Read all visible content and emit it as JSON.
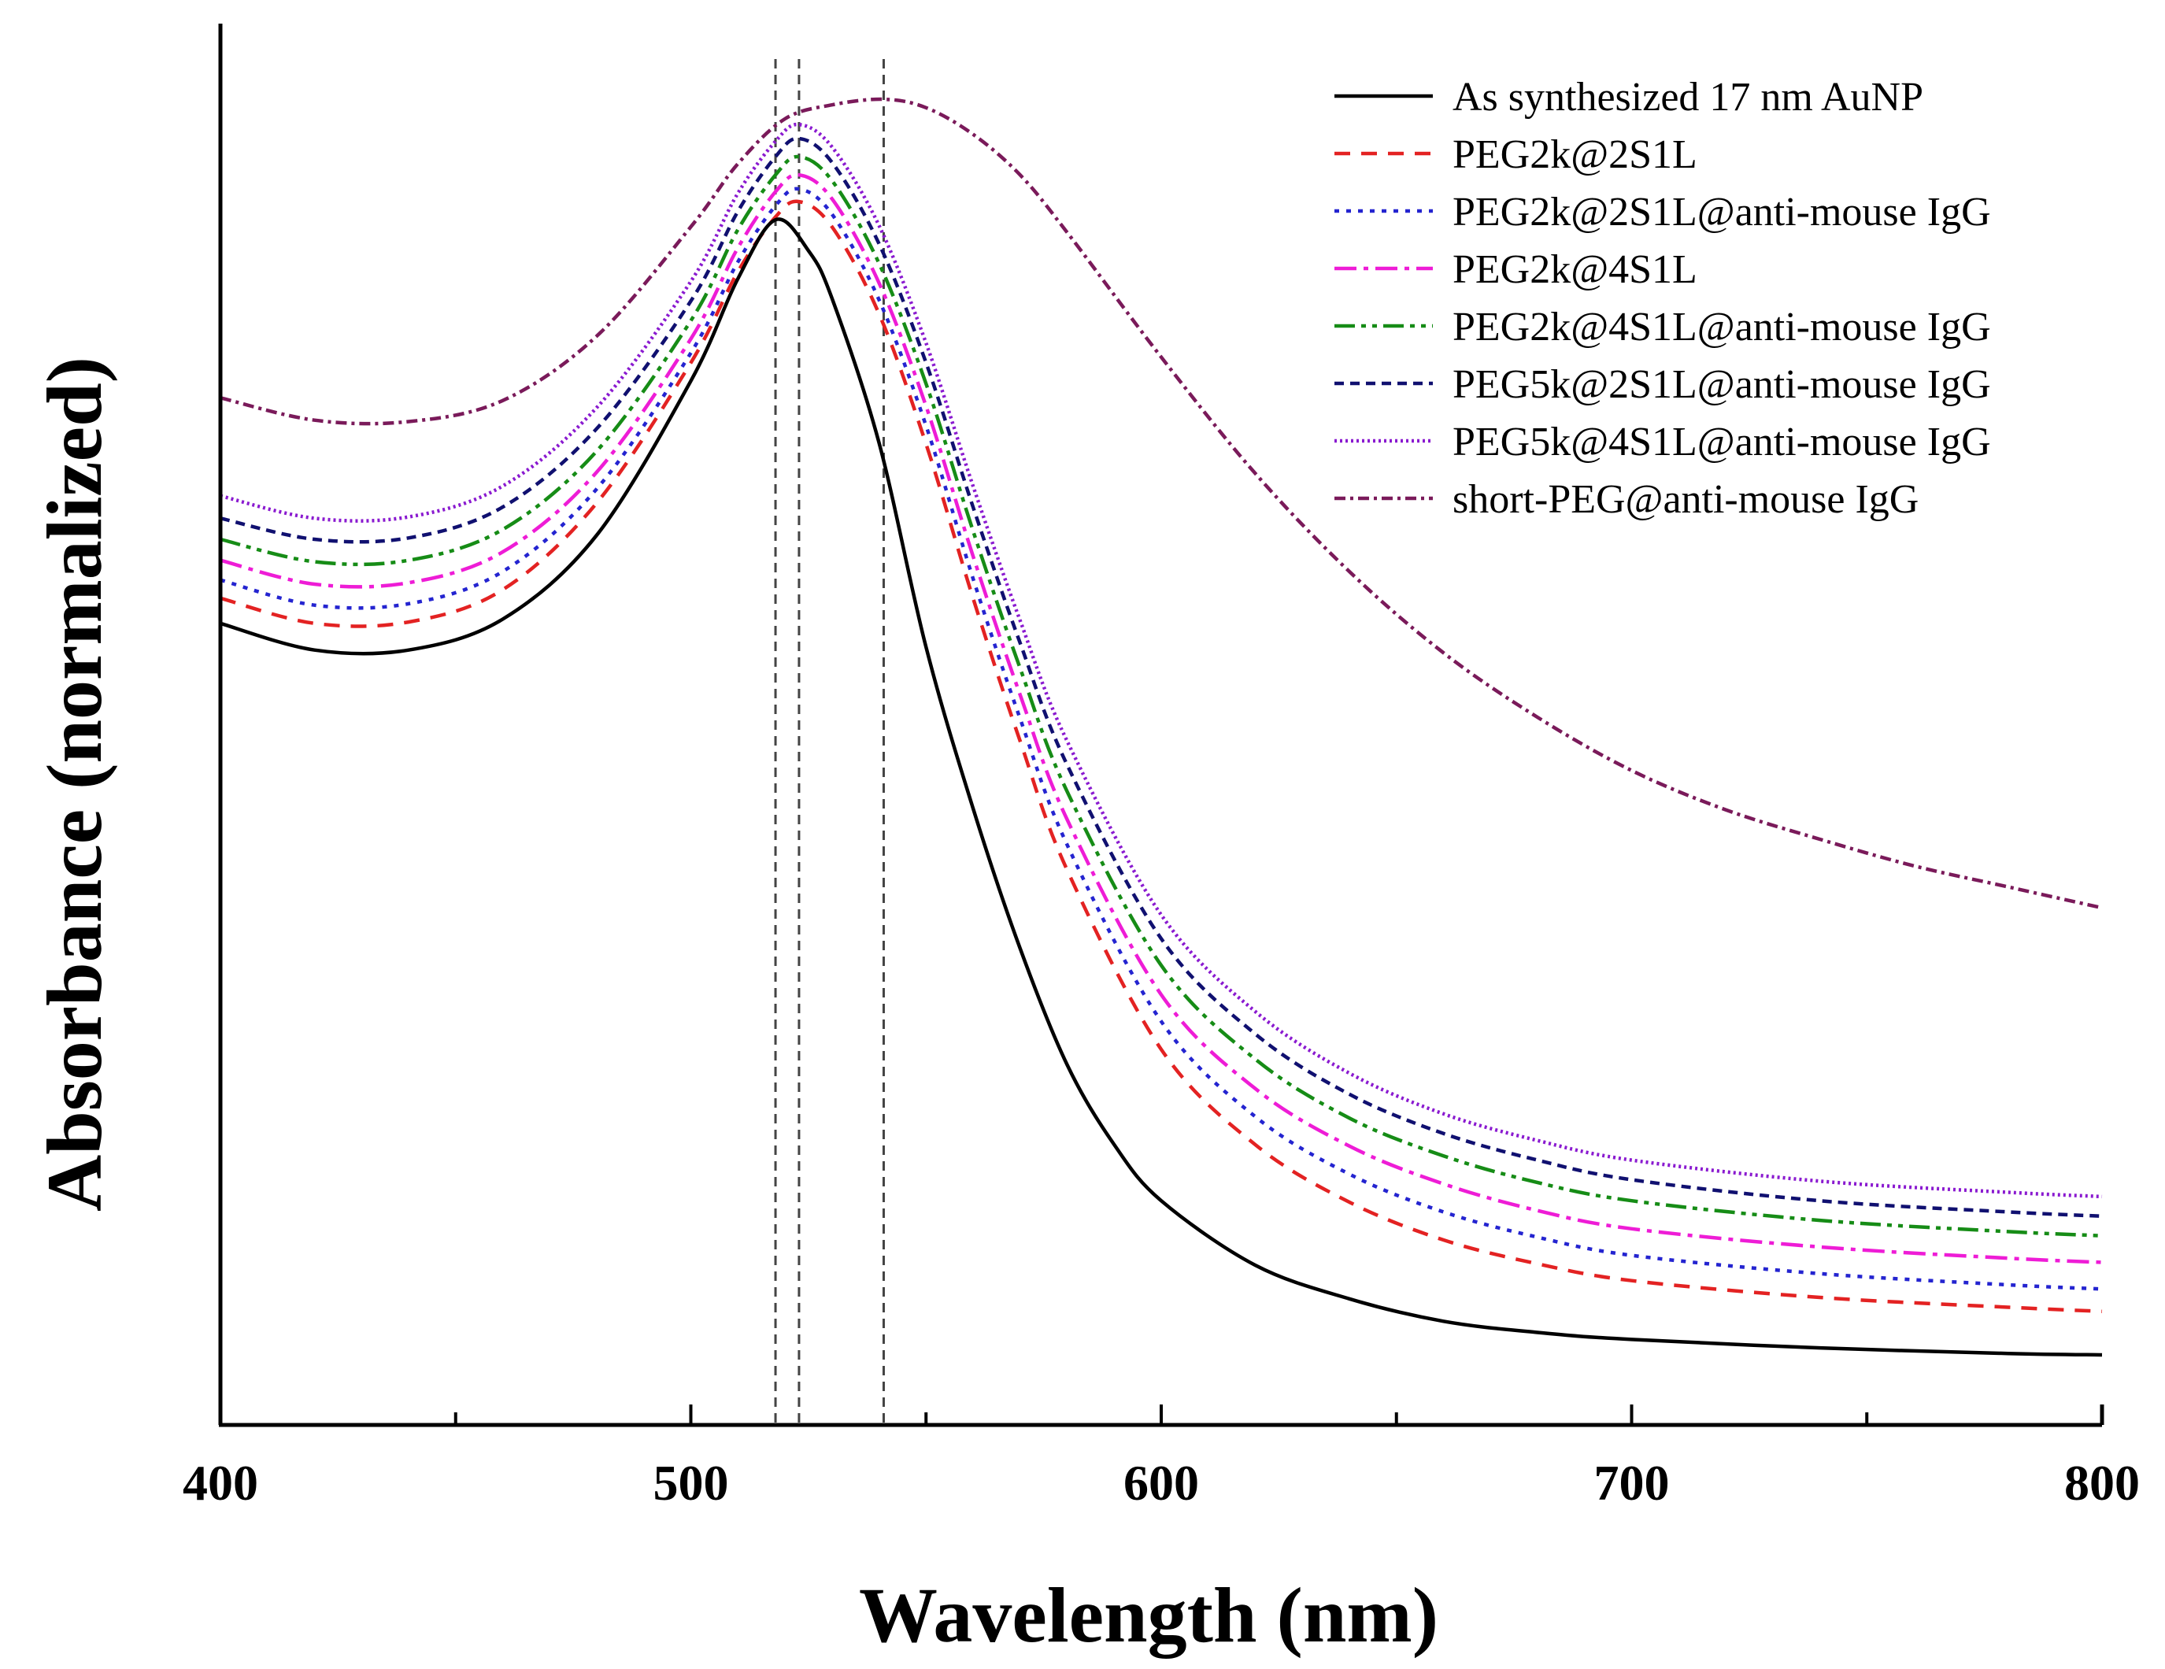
{
  "chart_data": {
    "type": "line",
    "title": "",
    "xlabel": "Wavelength (nm)",
    "ylabel": "Absorbance (normalized)",
    "xlim": [
      400,
      800
    ],
    "ylim": [
      0,
      1
    ],
    "xticks": [
      400,
      500,
      600,
      700,
      800
    ],
    "yticks_shown": false,
    "grid": false,
    "legend_position": "top-right",
    "reference_lines": {
      "style": "dashed",
      "color": "#444444",
      "x": [
        518,
        523,
        541
      ]
    },
    "series": [
      {
        "name": "As synthesized 17 nm AuNP",
        "color": "#000000",
        "dash": "solid",
        "x": [
          400,
          420,
          440,
          460,
          480,
          500,
          510,
          518,
          525,
          530,
          540,
          550,
          560,
          570,
          580,
          590,
          600,
          620,
          640,
          660,
          680,
          700,
          740,
          780,
          800
        ],
        "y": [
          0.572,
          0.553,
          0.553,
          0.575,
          0.635,
          0.745,
          0.818,
          0.86,
          0.838,
          0.804,
          0.701,
          0.555,
          0.44,
          0.34,
          0.257,
          0.2,
          0.16,
          0.114,
          0.09,
          0.074,
          0.066,
          0.061,
          0.055,
          0.051,
          0.05
        ]
      },
      {
        "name": "PEG2k@2S1L",
        "color": "#e32222",
        "dash": "20 14",
        "x": [
          400,
          420,
          440,
          460,
          480,
          500,
          510,
          518,
          523,
          530,
          540,
          550,
          560,
          570,
          580,
          600,
          620,
          640,
          660,
          680,
          700,
          740,
          780,
          800
        ],
        "y": [
          0.59,
          0.572,
          0.573,
          0.596,
          0.658,
          0.758,
          0.823,
          0.862,
          0.873,
          0.855,
          0.793,
          0.7,
          0.59,
          0.488,
          0.396,
          0.268,
          0.2,
          0.159,
          0.132,
          0.115,
          0.103,
          0.091,
          0.084,
          0.081
        ]
      },
      {
        "name": "PEG2k@2S1L@anti-mouse IgG",
        "color": "#2424d0",
        "dash": "6 9",
        "x": [
          400,
          420,
          440,
          460,
          480,
          500,
          510,
          518,
          523,
          530,
          540,
          550,
          560,
          570,
          580,
          600,
          620,
          640,
          660,
          680,
          700,
          740,
          780,
          800
        ],
        "y": [
          0.603,
          0.585,
          0.586,
          0.609,
          0.668,
          0.765,
          0.83,
          0.87,
          0.882,
          0.864,
          0.803,
          0.713,
          0.604,
          0.504,
          0.414,
          0.288,
          0.22,
          0.179,
          0.152,
          0.134,
          0.121,
          0.108,
          0.1,
          0.097
        ]
      },
      {
        "name": "PEG2k@4S1L",
        "color": "#ee1cd6",
        "dash": "28 9 6 9",
        "x": [
          400,
          420,
          440,
          460,
          480,
          500,
          510,
          518,
          523,
          530,
          540,
          550,
          560,
          570,
          580,
          600,
          620,
          640,
          660,
          680,
          700,
          740,
          780,
          800
        ],
        "y": [
          0.617,
          0.6,
          0.601,
          0.623,
          0.68,
          0.775,
          0.84,
          0.88,
          0.892,
          0.875,
          0.815,
          0.727,
          0.62,
          0.521,
          0.432,
          0.307,
          0.24,
          0.199,
          0.172,
          0.153,
          0.14,
          0.127,
          0.119,
          0.116
        ]
      },
      {
        "name": "PEG2k@4S1L@anti-mouse IgG",
        "color": "#168c16",
        "dash": "26 8 6 8 6 8",
        "x": [
          400,
          420,
          440,
          460,
          480,
          500,
          510,
          518,
          523,
          530,
          540,
          550,
          560,
          570,
          580,
          600,
          620,
          640,
          660,
          680,
          700,
          740,
          780,
          800
        ],
        "y": [
          0.632,
          0.616,
          0.617,
          0.639,
          0.695,
          0.788,
          0.853,
          0.892,
          0.905,
          0.888,
          0.829,
          0.743,
          0.638,
          0.54,
          0.452,
          0.328,
          0.261,
          0.219,
          0.192,
          0.173,
          0.16,
          0.146,
          0.138,
          0.135
        ]
      },
      {
        "name": "PEG5k@2S1L@anti-mouse IgG",
        "color": "#101070",
        "dash": "12 8",
        "x": [
          400,
          420,
          440,
          460,
          480,
          500,
          510,
          518,
          523,
          530,
          540,
          550,
          560,
          570,
          580,
          600,
          620,
          640,
          660,
          680,
          700,
          740,
          780,
          800
        ],
        "y": [
          0.647,
          0.632,
          0.633,
          0.655,
          0.711,
          0.802,
          0.866,
          0.905,
          0.918,
          0.901,
          0.843,
          0.758,
          0.655,
          0.558,
          0.471,
          0.347,
          0.279,
          0.236,
          0.208,
          0.189,
          0.175,
          0.16,
          0.152,
          0.149
        ]
      },
      {
        "name": "PEG5k@4S1L@anti-mouse IgG",
        "color": "#8a1ad0",
        "dash": "3 4",
        "x": [
          400,
          420,
          440,
          460,
          480,
          500,
          510,
          518,
          523,
          530,
          540,
          550,
          560,
          570,
          580,
          600,
          620,
          640,
          660,
          680,
          700,
          740,
          780,
          800
        ],
        "y": [
          0.663,
          0.647,
          0.648,
          0.67,
          0.726,
          0.816,
          0.879,
          0.916,
          0.928,
          0.912,
          0.856,
          0.772,
          0.67,
          0.574,
          0.488,
          0.364,
          0.295,
          0.251,
          0.222,
          0.203,
          0.189,
          0.174,
          0.166,
          0.163
        ]
      },
      {
        "name": "short-PEG@anti-mouse IgG",
        "color": "#7a1a5a",
        "dash": "14 6 4 6",
        "x": [
          400,
          420,
          440,
          460,
          480,
          500,
          510,
          520,
          530,
          541,
          550,
          560,
          570,
          580,
          600,
          620,
          640,
          660,
          680,
          700,
          720,
          740,
          760,
          780,
          800
        ],
        "y": [
          0.733,
          0.717,
          0.716,
          0.731,
          0.777,
          0.855,
          0.9,
          0.932,
          0.942,
          0.946,
          0.94,
          0.921,
          0.892,
          0.851,
          0.762,
          0.679,
          0.609,
          0.551,
          0.505,
          0.467,
          0.439,
          0.418,
          0.399,
          0.384,
          0.369
        ]
      }
    ]
  }
}
